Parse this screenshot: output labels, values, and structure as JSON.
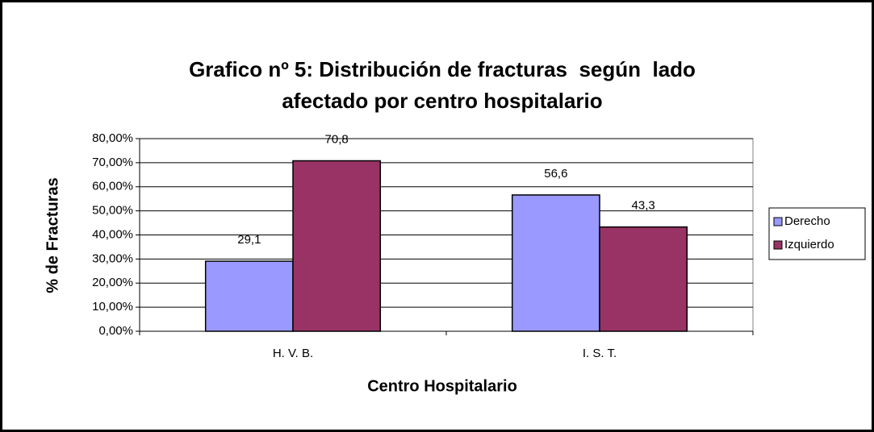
{
  "chart_data": {
    "type": "bar",
    "title": [
      "Grafico nº 5: Distribución de fracturas  según  lado",
      "afectado por centro hospitalario"
    ],
    "x_label": "Centro Hospitalario",
    "y_label": "% de Fracturas",
    "categories": [
      "H. V. B.",
      "I. S. T."
    ],
    "series": [
      {
        "name": "Derecho",
        "color": "#9999ff",
        "values": [
          29.1,
          56.6
        ],
        "value_labels": [
          "29,1",
          "56,6"
        ]
      },
      {
        "name": "Izquierdo",
        "color": "#993366",
        "values": [
          70.8,
          43.3
        ],
        "value_labels": [
          "70,8",
          "43,3"
        ]
      }
    ],
    "ylim": [
      0,
      80
    ],
    "yticks": [
      {
        "value": 0,
        "label": "0,00%"
      },
      {
        "value": 10,
        "label": "10,00%"
      },
      {
        "value": 20,
        "label": "20,00%"
      },
      {
        "value": 30,
        "label": "30,00%"
      },
      {
        "value": 40,
        "label": "40,00%"
      },
      {
        "value": 50,
        "label": "50,00%"
      },
      {
        "value": 60,
        "label": "60,00%"
      },
      {
        "value": 70,
        "label": "70,00%"
      },
      {
        "value": 80,
        "label": "80,00%"
      }
    ],
    "grid": true,
    "legend": "right"
  }
}
